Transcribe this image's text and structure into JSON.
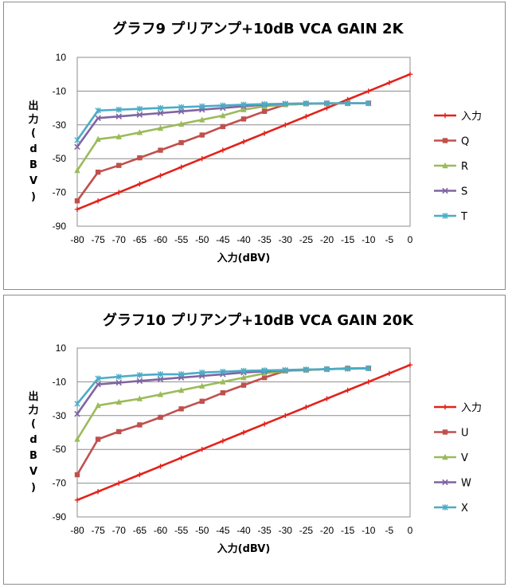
{
  "chart_data": [
    {
      "type": "line",
      "title": "グラフ9  プリアンプ+10dB VCA GAIN 2K",
      "xlabel": "入力(dBV)",
      "ylabel": "出力(dBV)",
      "ylabel_chars": [
        "出",
        "力",
        "(",
        "d",
        "B",
        "V",
        ")"
      ],
      "xlim": [
        -80,
        0
      ],
      "ylim": [
        -90,
        10
      ],
      "x_ticks": [
        -80,
        -75,
        -70,
        -65,
        -60,
        -55,
        -50,
        -45,
        -40,
        -35,
        -30,
        -25,
        -20,
        -15,
        -10,
        -5,
        0
      ],
      "y_ticks": [
        10,
        -10,
        -30,
        -50,
        -70,
        -90
      ],
      "legend_position": "right",
      "series": [
        {
          "name": "入力",
          "color": "#e3221b",
          "marker": "plus",
          "x": [
            -80,
            -75,
            -70,
            -65,
            -60,
            -55,
            -50,
            -45,
            -40,
            -35,
            -30,
            -25,
            -20,
            -15,
            -10,
            -5,
            0
          ],
          "values": [
            -80,
            -75,
            -70,
            -65,
            -60,
            -55,
            -50,
            -45,
            -40,
            -35,
            -30,
            -25,
            -20,
            -15,
            -10,
            -5,
            0
          ]
        },
        {
          "name": "Q",
          "color": "#c0504d",
          "marker": "square",
          "x": [
            -80,
            -75,
            -70,
            -65,
            -60,
            -55,
            -50,
            -45,
            -40,
            -35,
            -30,
            -25,
            -20,
            -15,
            -10
          ],
          "values": [
            -75,
            -58,
            -54,
            -49.5,
            -45,
            -40.5,
            -36,
            -31,
            -26.5,
            -22,
            -18,
            -17.5,
            -17.3,
            -17.2,
            -17.2
          ]
        },
        {
          "name": "R",
          "color": "#9bbb59",
          "marker": "triangle",
          "x": [
            -80,
            -75,
            -70,
            -65,
            -60,
            -55,
            -50,
            -45,
            -40,
            -35,
            -30,
            -25,
            -20,
            -15,
            -10
          ],
          "values": [
            -57,
            -38.5,
            -37,
            -34.5,
            -32,
            -29.5,
            -27,
            -24.5,
            -21,
            -19,
            -18,
            -17.5,
            -17.3,
            -17.2,
            -17.2
          ]
        },
        {
          "name": "S",
          "color": "#8064a2",
          "marker": "x",
          "x": [
            -80,
            -75,
            -70,
            -65,
            -60,
            -55,
            -50,
            -45,
            -40,
            -35,
            -30,
            -25,
            -20,
            -15,
            -10
          ],
          "values": [
            -43,
            -26,
            -25,
            -24,
            -23,
            -22,
            -21,
            -20,
            -19,
            -18,
            -17.5,
            -17.3,
            -17.2,
            -17.2,
            -17.2
          ]
        },
        {
          "name": "T",
          "color": "#4bacc6",
          "marker": "star",
          "x": [
            -80,
            -75,
            -70,
            -65,
            -60,
            -55,
            -50,
            -45,
            -40,
            -35,
            -30,
            -25,
            -20,
            -15,
            -10
          ],
          "values": [
            -39,
            -21.5,
            -21,
            -20.5,
            -20,
            -19.5,
            -19,
            -18.5,
            -18,
            -17.7,
            -17.5,
            -17.3,
            -17.2,
            -17.2,
            -17.2
          ]
        }
      ]
    },
    {
      "type": "line",
      "title": "グラフ10  プリアンプ+10dB VCA GAIN 20K",
      "xlabel": "入力(dBV)",
      "ylabel": "出力(dBV)",
      "ylabel_chars": [
        "出",
        "力",
        "(",
        "d",
        "B",
        "V",
        ")"
      ],
      "xlim": [
        -80,
        0
      ],
      "ylim": [
        -90,
        10
      ],
      "x_ticks": [
        -80,
        -75,
        -70,
        -65,
        -60,
        -55,
        -50,
        -45,
        -40,
        -35,
        -30,
        -25,
        -20,
        -15,
        -10,
        -5,
        0
      ],
      "y_ticks": [
        10,
        -10,
        -30,
        -50,
        -70,
        -90
      ],
      "legend_position": "right",
      "series": [
        {
          "name": "入力",
          "color": "#e3221b",
          "marker": "plus",
          "x": [
            -80,
            -75,
            -70,
            -65,
            -60,
            -55,
            -50,
            -45,
            -40,
            -35,
            -30,
            -25,
            -20,
            -15,
            -10,
            -5,
            0
          ],
          "values": [
            -80,
            -75,
            -70,
            -65,
            -60,
            -55,
            -50,
            -45,
            -40,
            -35,
            -30,
            -25,
            -20,
            -15,
            -10,
            -5,
            0
          ]
        },
        {
          "name": "U",
          "color": "#c0504d",
          "marker": "square",
          "x": [
            -80,
            -75,
            -70,
            -65,
            -60,
            -55,
            -50,
            -45,
            -40,
            -35,
            -30,
            -25,
            -20,
            -15,
            -10
          ],
          "values": [
            -65,
            -44,
            -39.5,
            -35.5,
            -31,
            -26,
            -21.5,
            -16.5,
            -12,
            -7.5,
            -3.5,
            -3,
            -2.5,
            -2,
            -2
          ]
        },
        {
          "name": "V",
          "color": "#9bbb59",
          "marker": "triangle",
          "x": [
            -80,
            -75,
            -70,
            -65,
            -60,
            -55,
            -50,
            -45,
            -40,
            -35,
            -30,
            -25,
            -20,
            -15,
            -10
          ],
          "values": [
            -44,
            -24,
            -22,
            -20,
            -17.5,
            -15,
            -12.5,
            -10,
            -7.5,
            -5,
            -3.5,
            -3,
            -2.5,
            -2,
            -2
          ]
        },
        {
          "name": "W",
          "color": "#8064a2",
          "marker": "x",
          "x": [
            -80,
            -75,
            -70,
            -65,
            -60,
            -55,
            -50,
            -45,
            -40,
            -35,
            -30,
            -25,
            -20,
            -15,
            -10
          ],
          "values": [
            -29,
            -11.5,
            -10.5,
            -9.5,
            -8.5,
            -7.5,
            -6.5,
            -5.5,
            -4.5,
            -3.8,
            -3.2,
            -2.8,
            -2.5,
            -2.2,
            -2
          ]
        },
        {
          "name": "X",
          "color": "#4bacc6",
          "marker": "star",
          "x": [
            -80,
            -75,
            -70,
            -65,
            -60,
            -55,
            -50,
            -45,
            -40,
            -35,
            -30,
            -25,
            -20,
            -15,
            -10
          ],
          "values": [
            -23,
            -8,
            -7,
            -6,
            -5.5,
            -5.5,
            -4.5,
            -4,
            -3.5,
            -3.2,
            -3,
            -2.7,
            -2.5,
            -2.2,
            -2
          ]
        }
      ]
    }
  ]
}
